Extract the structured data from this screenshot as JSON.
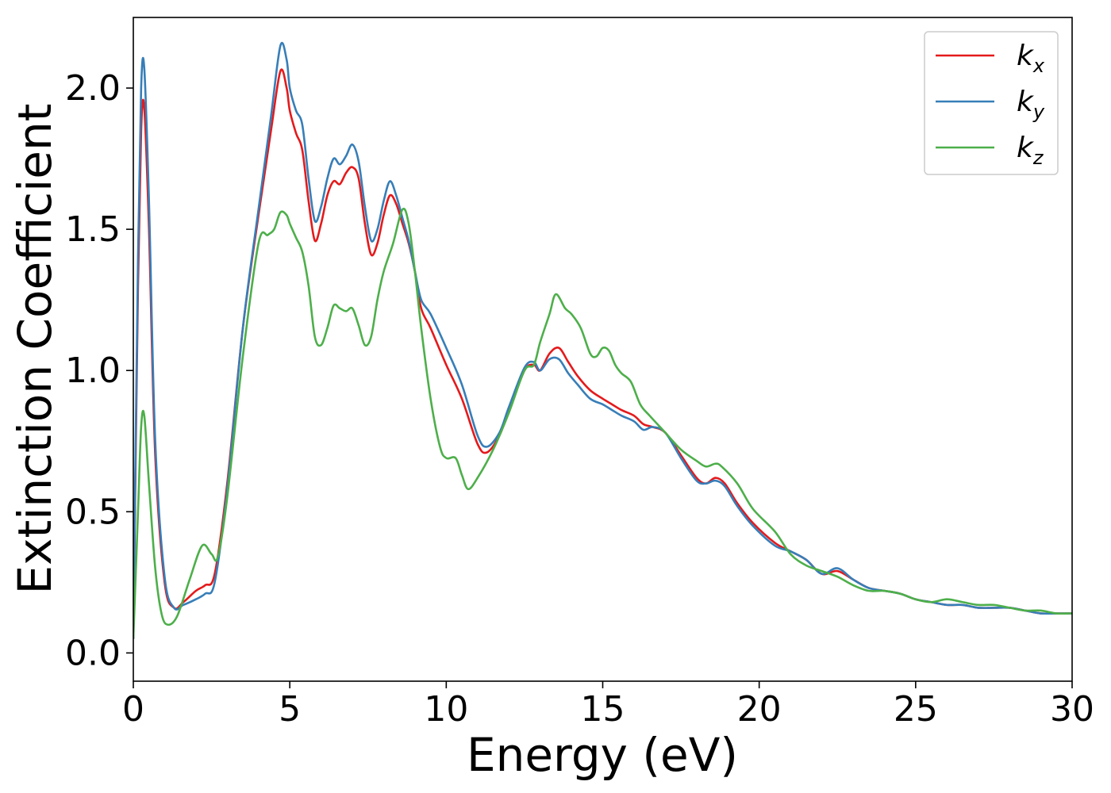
{
  "chart_data": {
    "type": "line",
    "title": "",
    "xlabel": "Energy (eV)",
    "ylabel": "Extinction Coefficient",
    "xlim": [
      0,
      30
    ],
    "ylim": [
      -0.1,
      2.25
    ],
    "xticks": [
      0,
      5,
      10,
      15,
      20,
      25,
      30
    ],
    "xtick_labels": [
      "0",
      "5",
      "10",
      "15",
      "20",
      "25",
      "30"
    ],
    "yticks": [
      0.0,
      0.5,
      1.0,
      1.5,
      2.0
    ],
    "ytick_labels": [
      "0.0",
      "0.5",
      "1.0",
      "1.5",
      "2.0"
    ],
    "grid": false,
    "legend_position": "top-right",
    "series": [
      {
        "name": "k_x",
        "label_main": "k",
        "label_sub": "x",
        "color": "#e41a1c",
        "x": [
          0,
          0.15,
          0.25,
          0.35,
          0.5,
          0.7,
          1.0,
          1.3,
          1.6,
          2.0,
          2.3,
          2.6,
          3.0,
          3.5,
          4.0,
          4.4,
          4.7,
          4.9,
          5.0,
          5.2,
          5.4,
          5.6,
          5.8,
          6.0,
          6.2,
          6.4,
          6.6,
          6.8,
          7.0,
          7.2,
          7.4,
          7.6,
          7.8,
          8.0,
          8.2,
          8.4,
          8.6,
          8.8,
          9.0,
          9.2,
          9.5,
          10.0,
          10.5,
          11.0,
          11.3,
          11.7,
          12.0,
          12.5,
          12.8,
          13.0,
          13.3,
          13.6,
          13.9,
          14.2,
          14.6,
          15.0,
          15.3,
          15.6,
          16.0,
          16.3,
          16.6,
          17.0,
          17.5,
          18.0,
          18.3,
          18.6,
          18.9,
          19.3,
          19.8,
          20.5,
          21.0,
          21.5,
          22.0,
          22.5,
          23.0,
          23.5,
          24.0,
          24.5,
          25.0,
          25.5,
          26.0,
          26.5,
          27.0,
          27.5,
          28.0,
          28.5,
          29.0,
          29.5,
          30.0
        ],
        "y": [
          0.05,
          1.3,
          1.85,
          1.93,
          1.5,
          0.7,
          0.25,
          0.16,
          0.18,
          0.22,
          0.24,
          0.28,
          0.6,
          1.15,
          1.55,
          1.85,
          2.06,
          2.0,
          1.92,
          1.84,
          1.78,
          1.6,
          1.46,
          1.52,
          1.62,
          1.67,
          1.66,
          1.7,
          1.72,
          1.68,
          1.52,
          1.41,
          1.45,
          1.55,
          1.62,
          1.59,
          1.52,
          1.45,
          1.35,
          1.22,
          1.15,
          1.02,
          0.9,
          0.74,
          0.71,
          0.77,
          0.86,
          1.0,
          1.02,
          1.0,
          1.06,
          1.08,
          1.03,
          0.98,
          0.93,
          0.9,
          0.88,
          0.86,
          0.84,
          0.81,
          0.8,
          0.78,
          0.7,
          0.62,
          0.6,
          0.62,
          0.6,
          0.53,
          0.46,
          0.39,
          0.36,
          0.33,
          0.28,
          0.29,
          0.26,
          0.23,
          0.22,
          0.21,
          0.19,
          0.18,
          0.17,
          0.17,
          0.16,
          0.16,
          0.16,
          0.15,
          0.14,
          0.14,
          0.14
        ]
      },
      {
        "name": "k_y",
        "label_main": "k",
        "label_sub": "y",
        "color": "#377eb8",
        "x": [
          0,
          0.15,
          0.25,
          0.35,
          0.5,
          0.7,
          1.0,
          1.3,
          1.6,
          2.0,
          2.3,
          2.6,
          3.0,
          3.5,
          4.0,
          4.4,
          4.7,
          4.9,
          5.0,
          5.2,
          5.4,
          5.6,
          5.8,
          6.0,
          6.2,
          6.4,
          6.6,
          6.8,
          7.0,
          7.2,
          7.4,
          7.6,
          7.8,
          8.0,
          8.2,
          8.4,
          8.6,
          8.8,
          9.0,
          9.2,
          9.5,
          10.0,
          10.5,
          11.0,
          11.3,
          11.7,
          12.0,
          12.5,
          12.8,
          13.0,
          13.3,
          13.6,
          13.9,
          14.2,
          14.6,
          15.0,
          15.3,
          15.6,
          16.0,
          16.3,
          16.6,
          17.0,
          17.5,
          18.0,
          18.3,
          18.6,
          18.9,
          19.3,
          19.8,
          20.5,
          21.0,
          21.5,
          22.0,
          22.5,
          23.0,
          23.5,
          24.0,
          24.5,
          25.0,
          25.5,
          26.0,
          26.5,
          27.0,
          27.5,
          28.0,
          28.5,
          29.0,
          29.5,
          30.0
        ],
        "y": [
          0.05,
          1.4,
          2.0,
          2.07,
          1.6,
          0.75,
          0.27,
          0.16,
          0.17,
          0.19,
          0.21,
          0.25,
          0.58,
          1.15,
          1.57,
          1.9,
          2.15,
          2.1,
          2.0,
          1.92,
          1.87,
          1.68,
          1.53,
          1.58,
          1.68,
          1.75,
          1.73,
          1.76,
          1.8,
          1.74,
          1.58,
          1.46,
          1.5,
          1.6,
          1.67,
          1.62,
          1.54,
          1.46,
          1.35,
          1.25,
          1.2,
          1.08,
          0.95,
          0.77,
          0.73,
          0.78,
          0.87,
          1.01,
          1.03,
          1.0,
          1.04,
          1.04,
          0.99,
          0.95,
          0.9,
          0.88,
          0.86,
          0.84,
          0.82,
          0.79,
          0.8,
          0.78,
          0.69,
          0.61,
          0.6,
          0.61,
          0.59,
          0.52,
          0.45,
          0.38,
          0.36,
          0.33,
          0.28,
          0.3,
          0.26,
          0.23,
          0.22,
          0.21,
          0.19,
          0.18,
          0.17,
          0.17,
          0.16,
          0.16,
          0.16,
          0.15,
          0.14,
          0.14,
          0.14
        ]
      },
      {
        "name": "k_z",
        "label_main": "k",
        "label_sub": "z",
        "color": "#4daf4a",
        "x": [
          0,
          0.15,
          0.25,
          0.35,
          0.5,
          0.7,
          0.9,
          1.1,
          1.4,
          1.8,
          2.2,
          2.5,
          2.7,
          3.0,
          3.5,
          4.0,
          4.3,
          4.5,
          4.7,
          4.9,
          5.0,
          5.2,
          5.4,
          5.6,
          5.8,
          6.0,
          6.2,
          6.4,
          6.6,
          6.8,
          7.0,
          7.2,
          7.4,
          7.6,
          7.8,
          8.0,
          8.3,
          8.6,
          8.8,
          9.0,
          9.2,
          9.5,
          9.8,
          10.0,
          10.3,
          10.5,
          10.7,
          11.0,
          11.5,
          12.0,
          12.5,
          12.8,
          13.0,
          13.3,
          13.5,
          13.8,
          14.0,
          14.3,
          14.6,
          14.8,
          15.0,
          15.2,
          15.4,
          15.6,
          15.9,
          16.2,
          16.5,
          17.0,
          17.5,
          18.0,
          18.3,
          18.6,
          18.8,
          19.3,
          19.8,
          20.5,
          21.0,
          21.5,
          22.0,
          22.5,
          23.0,
          23.5,
          24.0,
          24.5,
          25.0,
          25.5,
          26.0,
          26.5,
          27.0,
          27.5,
          28.0,
          28.5,
          29.0,
          29.5,
          30.0
        ],
        "y": [
          0.05,
          0.5,
          0.8,
          0.84,
          0.6,
          0.3,
          0.14,
          0.1,
          0.13,
          0.26,
          0.38,
          0.35,
          0.34,
          0.55,
          1.05,
          1.45,
          1.48,
          1.5,
          1.56,
          1.55,
          1.52,
          1.47,
          1.42,
          1.3,
          1.12,
          1.09,
          1.15,
          1.23,
          1.22,
          1.21,
          1.22,
          1.16,
          1.09,
          1.12,
          1.25,
          1.35,
          1.45,
          1.57,
          1.52,
          1.35,
          1.15,
          0.9,
          0.73,
          0.69,
          0.69,
          0.63,
          0.58,
          0.62,
          0.72,
          0.85,
          1.0,
          1.02,
          1.1,
          1.2,
          1.27,
          1.22,
          1.2,
          1.15,
          1.06,
          1.05,
          1.08,
          1.07,
          1.02,
          0.99,
          0.96,
          0.88,
          0.84,
          0.78,
          0.72,
          0.68,
          0.66,
          0.67,
          0.66,
          0.6,
          0.51,
          0.43,
          0.35,
          0.31,
          0.29,
          0.27,
          0.24,
          0.22,
          0.22,
          0.21,
          0.19,
          0.18,
          0.19,
          0.18,
          0.17,
          0.17,
          0.16,
          0.15,
          0.15,
          0.14,
          0.14
        ]
      }
    ]
  }
}
